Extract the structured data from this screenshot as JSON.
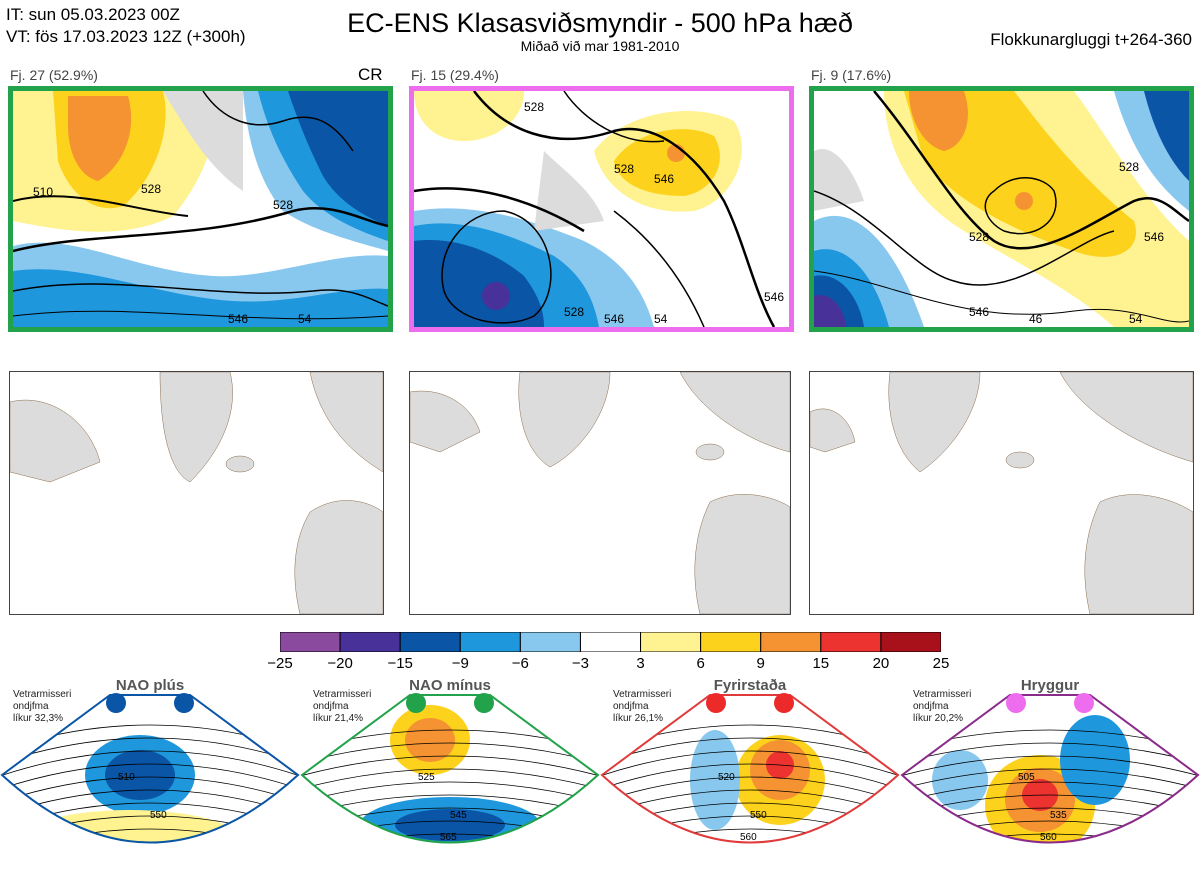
{
  "header": {
    "it_line": "IT: sun 05.03.2023 00Z",
    "vt_line": "VT: fös 17.03.2023 12Z  (+300h)",
    "title": "EC-ENS Klasasviðsmyndir - 500 hPa hæð",
    "subtitle": "Miðað við mar 1981-2010",
    "window": "Flokkunargluggi t+264-360"
  },
  "clusters": [
    {
      "label": "Fj. 27 (52.9%)",
      "border_color": "#22a24a",
      "regime_tag": "CR",
      "contours": [
        "510",
        "528",
        "528",
        "546",
        "54"
      ]
    },
    {
      "label": "Fj. 15 (29.4%)",
      "border_color": "#ee6cee",
      "regime_tag": "",
      "contours": [
        "528",
        "528",
        "546",
        "546",
        "528",
        "546",
        "54"
      ]
    },
    {
      "label": "Fj. 9 (17.6%)",
      "border_color": "#22a24a",
      "regime_tag": "",
      "contours": [
        "528",
        "528",
        "546",
        "546",
        "46",
        "54"
      ]
    }
  ],
  "colorbar": {
    "ticks": [
      "−25",
      "−20",
      "−15",
      "−9",
      "−6",
      "−3",
      "3",
      "6",
      "9",
      "15",
      "20",
      "25"
    ],
    "colors": [
      "#8a4a9e",
      "#48329a",
      "#0a55a5",
      "#1f97dc",
      "#88c8ee",
      "#ffffff",
      "#fff290",
      "#fdd21c",
      "#f59332",
      "#ec3330",
      "#a8101a"
    ]
  },
  "regimes": [
    {
      "name": "NAO plús",
      "note_l1": "Vetrarmisseri",
      "note_l2": "ondjfma",
      "note_l3": "líkur 32,3%",
      "dot_color": "#0a55a5",
      "frame_color": "#0a55a5",
      "contours": [
        "510",
        "550"
      ]
    },
    {
      "name": "NAO mínus",
      "note_l1": "Vetrarmisseri",
      "note_l2": "ondjfma",
      "note_l3": "líkur 21,4%",
      "dot_color": "#22a24a",
      "frame_color": "#22a24a",
      "contours": [
        "525",
        "545",
        "565"
      ]
    },
    {
      "name": "Fyrirstaða",
      "note_l1": "Vetrarmisseri",
      "note_l2": "ondjfma",
      "note_l3": "líkur 26,1%",
      "dot_color": "#ec2a2a",
      "frame_color": "#e03a3a",
      "contours": [
        "520",
        "550",
        "560"
      ]
    },
    {
      "name": "Hryggur",
      "note_l1": "Vetrarmisseri",
      "note_l2": "ondjfma",
      "note_l3": "líkur 20,2%",
      "dot_color": "#ee6cee",
      "frame_color": "#8a2a8a",
      "contours": [
        "505",
        "535",
        "560"
      ]
    }
  ]
}
